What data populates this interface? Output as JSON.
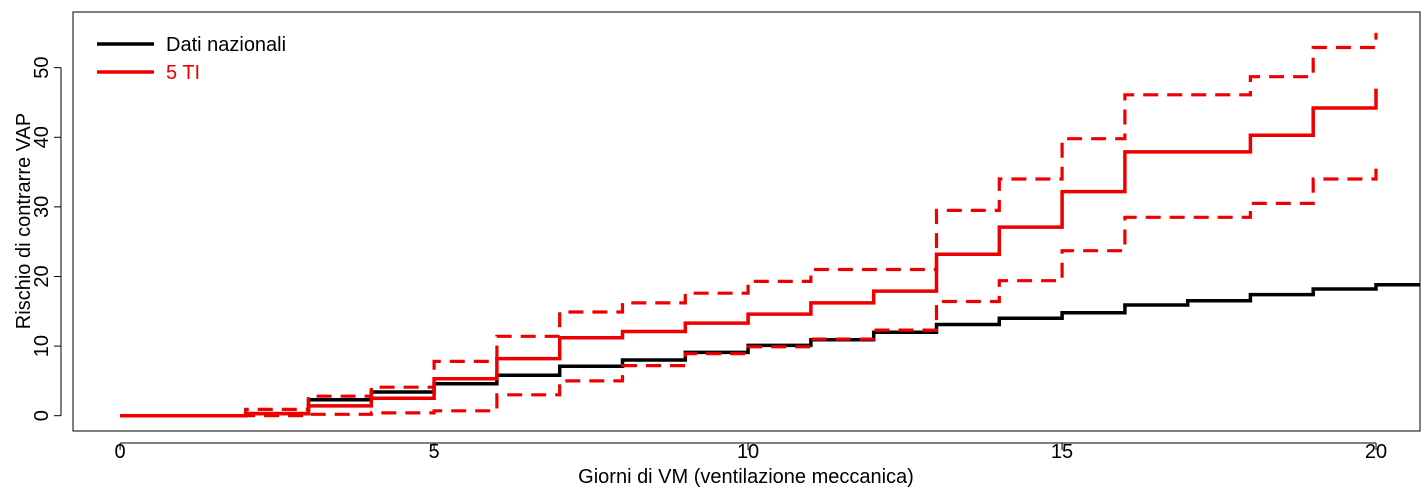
{
  "chart_data": {
    "type": "line",
    "step": true,
    "xlabel": "Giorni di VM (ventilazione meccanica)",
    "ylabel": "Rischio di contrarre VAP",
    "xlim": [
      -0.75,
      20.7
    ],
    "ylim": [
      -2.2,
      58
    ],
    "x_ticks": [
      0,
      5,
      10,
      15,
      20
    ],
    "y_ticks": [
      0,
      10,
      20,
      30,
      40,
      50
    ],
    "legend_position": "top-left",
    "legend": [
      {
        "label": "Dati nazionali",
        "color": "#000000"
      },
      {
        "label": "5 TI",
        "color": "#ee0000"
      }
    ],
    "series": [
      {
        "name": "Dati nazionali",
        "color": "#000000",
        "style": "solid",
        "x": [
          0,
          1,
          2,
          3,
          4,
          5,
          6,
          7,
          8,
          9,
          10,
          11,
          12,
          13,
          14,
          15,
          16,
          17,
          18,
          19,
          20,
          20.7
        ],
        "y": [
          0,
          0,
          0.3,
          2.3,
          3.4,
          4.6,
          5.8,
          7.1,
          8.0,
          9.1,
          10.1,
          10.9,
          12.0,
          13.1,
          14.0,
          14.8,
          15.9,
          16.5,
          17.4,
          18.2,
          18.8,
          18.8
        ]
      },
      {
        "name": "5 TI",
        "color": "#ee0000",
        "style": "solid",
        "x": [
          0,
          1,
          2,
          3,
          4,
          5,
          6,
          7,
          8,
          9,
          10,
          11,
          12,
          13,
          14,
          15,
          16,
          17,
          18,
          19,
          20
        ],
        "y": [
          0,
          0,
          0.3,
          1.4,
          2.5,
          5.3,
          8.2,
          11.2,
          12.1,
          13.3,
          14.6,
          16.2,
          17.9,
          23.2,
          27.1,
          32.2,
          37.9,
          37.9,
          40.3,
          44.2,
          47.0
        ]
      },
      {
        "name": "",
        "color": "#ee0000",
        "style": "dashed",
        "x": [
          0,
          1,
          2,
          3,
          4,
          5,
          6,
          7,
          8,
          9,
          10,
          11,
          12,
          13,
          14,
          15,
          16,
          17,
          18,
          19,
          20
        ],
        "y": [
          0,
          0,
          0.9,
          2.8,
          4.1,
          7.8,
          11.4,
          14.9,
          16.2,
          17.6,
          19.3,
          21.0,
          21.0,
          29.5,
          34.0,
          39.8,
          46.1,
          46.1,
          48.7,
          52.9,
          55.0
        ]
      },
      {
        "name": "",
        "color": "#ee0000",
        "style": "dashed",
        "x": [
          0,
          1,
          2,
          3,
          4,
          5,
          6,
          7,
          8,
          9,
          10,
          11,
          12,
          13,
          14,
          15,
          16,
          17,
          18,
          19,
          20
        ],
        "y": [
          0,
          0,
          0,
          0.2,
          0.4,
          0.7,
          3.0,
          5.0,
          7.2,
          8.9,
          9.9,
          11.0,
          12.3,
          16.4,
          19.4,
          23.7,
          28.5,
          28.5,
          30.5,
          34.0,
          36.5
        ]
      }
    ]
  }
}
